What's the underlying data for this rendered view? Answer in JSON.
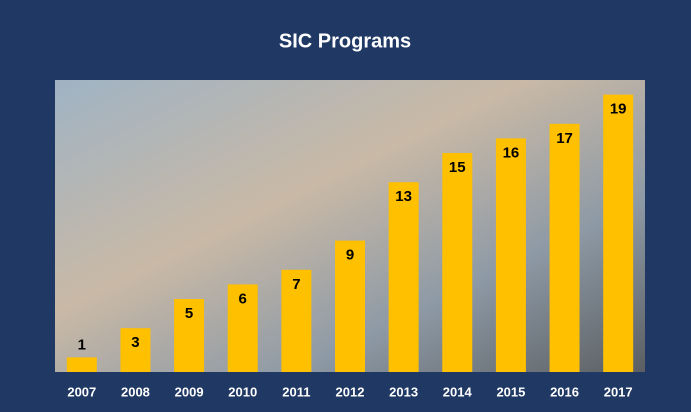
{
  "chart_data": {
    "type": "bar",
    "title": "SIC Programs",
    "categories": [
      "2007",
      "2008",
      "2009",
      "2010",
      "2011",
      "2012",
      "2013",
      "2014",
      "2015",
      "2016",
      "2017"
    ],
    "values": [
      1,
      3,
      5,
      6,
      7,
      9,
      13,
      15,
      16,
      17,
      19
    ],
    "color": "#ffc000",
    "ylim": [
      0,
      20
    ]
  }
}
